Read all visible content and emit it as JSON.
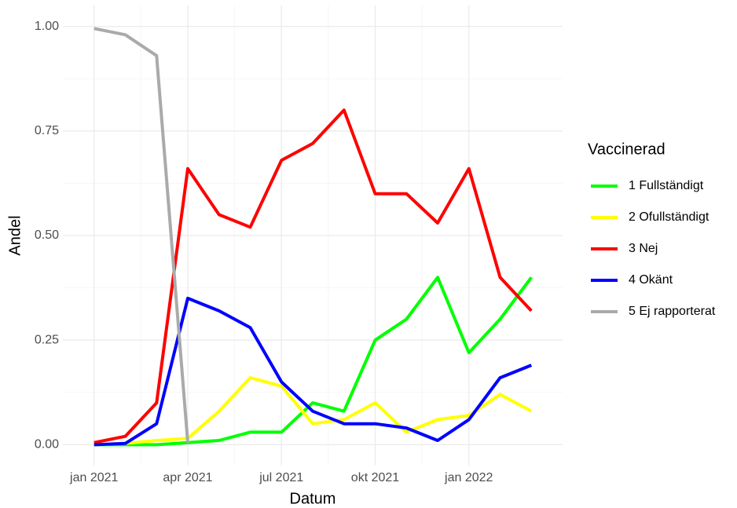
{
  "chart_data": {
    "type": "line",
    "x_label": "Datum",
    "y_label": "Andel",
    "legend_title": "Vaccinerad",
    "x": [
      "2021-01",
      "2021-02",
      "2021-03",
      "2021-04",
      "2021-05",
      "2021-06",
      "2021-07",
      "2021-08",
      "2021-09",
      "2021-10",
      "2021-11",
      "2021-12",
      "2022-01",
      "2022-02",
      "2022-03"
    ],
    "series": [
      {
        "name": "1 Fullständigt",
        "color": "#00ff00",
        "values": [
          0,
          0,
          0,
          0.005,
          0.01,
          0.03,
          0.03,
          0.1,
          0.08,
          0.25,
          0.3,
          0.4,
          0.22,
          0.3,
          0.4
        ]
      },
      {
        "name": "2 Ofullständigt",
        "color": "#ffff00",
        "values": [
          0,
          0.003,
          0.01,
          0.015,
          0.08,
          0.16,
          0.14,
          0.05,
          0.06,
          0.1,
          0.03,
          0.06,
          0.07,
          0.12,
          0.08
        ]
      },
      {
        "name": "3 Nej",
        "color": "#ff0000",
        "values": [
          0.005,
          0.02,
          0.1,
          0.66,
          0.55,
          0.52,
          0.68,
          0.72,
          0.8,
          0.6,
          0.6,
          0.53,
          0.66,
          0.4,
          0.32
        ]
      },
      {
        "name": "4 Okänt",
        "color": "#0000ff",
        "values": [
          0,
          0.003,
          0.05,
          0.35,
          0.32,
          0.28,
          0.15,
          0.08,
          0.05,
          0.05,
          0.04,
          0.01,
          0.06,
          0.16,
          0.19
        ]
      },
      {
        "name": "5 Ej rapporterat",
        "color": "#aaaaaa",
        "values": [
          0.995,
          0.98,
          0.93,
          0.005,
          null,
          null,
          null,
          null,
          null,
          null,
          null,
          null,
          null,
          null,
          null
        ]
      }
    ],
    "xlim": [
      "2020-12",
      "2022-04"
    ],
    "xticks": [
      {
        "value": "2021-01",
        "label": "jan 2021"
      },
      {
        "value": "2021-04",
        "label": "apr 2021"
      },
      {
        "value": "2021-07",
        "label": "jul 2021"
      },
      {
        "value": "2021-10",
        "label": "okt 2021"
      },
      {
        "value": "2022-01",
        "label": "jan 2022"
      }
    ],
    "ylim": [
      -0.05,
      1.05
    ],
    "yticks": [
      {
        "value": 0,
        "label": "0.00"
      },
      {
        "value": 0.25,
        "label": "0.25"
      },
      {
        "value": 0.5,
        "label": "0.50"
      },
      {
        "value": 0.75,
        "label": "0.75"
      },
      {
        "value": 1,
        "label": "1.00"
      }
    ],
    "grid": true
  }
}
